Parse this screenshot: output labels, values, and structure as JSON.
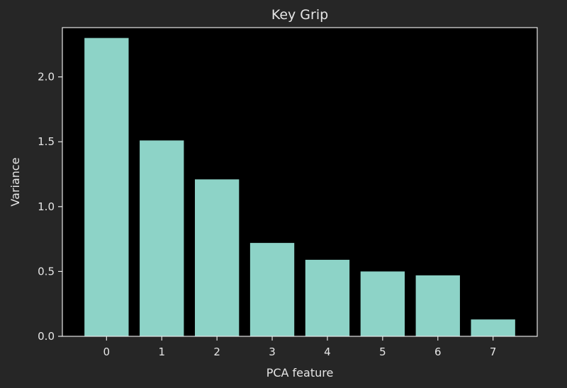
{
  "chart_data": {
    "type": "bar",
    "title": "Key Grip",
    "xlabel": "PCA feature",
    "ylabel": "Variance",
    "categories": [
      "0",
      "1",
      "2",
      "3",
      "4",
      "5",
      "6",
      "7"
    ],
    "values": [
      2.3,
      1.51,
      1.21,
      0.72,
      0.59,
      0.5,
      0.47,
      0.13
    ],
    "ylim": [
      0,
      2.38
    ],
    "yticks": [
      "0.0",
      "0.5",
      "1.0",
      "1.5",
      "2.0"
    ],
    "ytick_values": [
      0,
      0.5,
      1.0,
      1.5,
      2.0
    ],
    "grid": false,
    "colors": {
      "bar": "#8dd3c7",
      "plot_background": "#000000",
      "figure_background": "#262626",
      "axes": "#e6e6e6"
    }
  }
}
